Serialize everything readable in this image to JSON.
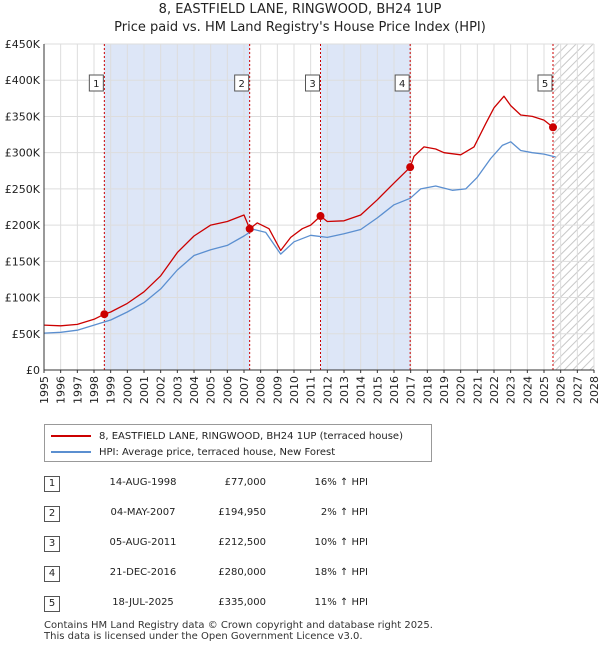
{
  "title": "8, EASTFIELD LANE, RINGWOOD, BH24 1UP",
  "subtitle": "Price paid vs. HM Land Registry's House Price Index (HPI)",
  "colors": {
    "red": "#cc0000",
    "blue": "#5b8fd0",
    "shade": "#dde6f7"
  },
  "chart_data": {
    "type": "line",
    "title": "8, EASTFIELD LANE, RINGWOOD, BH24 1UP",
    "subtitle": "Price paid vs. HM Land Registry's House Price Index (HPI)",
    "xlim": [
      1995,
      2028
    ],
    "ylim": [
      0,
      450000
    ],
    "x_ticks": [
      "1995",
      "1996",
      "1997",
      "1998",
      "1999",
      "2000",
      "2001",
      "2002",
      "2003",
      "2004",
      "2005",
      "2006",
      "2007",
      "2008",
      "2009",
      "2010",
      "2011",
      "2012",
      "2013",
      "2014",
      "2015",
      "2016",
      "2017",
      "2018",
      "2019",
      "2020",
      "2021",
      "2022",
      "2023",
      "2024",
      "2025",
      "2026",
      "2027",
      "2028"
    ],
    "y_ticks": [
      {
        "value": 0,
        "label": "£0"
      },
      {
        "value": 50000,
        "label": "£50K"
      },
      {
        "value": 100000,
        "label": "£100K"
      },
      {
        "value": 150000,
        "label": "£150K"
      },
      {
        "value": 200000,
        "label": "£200K"
      },
      {
        "value": 250000,
        "label": "£250K"
      },
      {
        "value": 300000,
        "label": "£300K"
      },
      {
        "value": 350000,
        "label": "£350K"
      },
      {
        "value": 400000,
        "label": "£400K"
      },
      {
        "value": 450000,
        "label": "£450K"
      }
    ],
    "shaded_ranges": [
      [
        1998.62,
        2007.34
      ],
      [
        2011.59,
        2016.97
      ]
    ],
    "hatched_from": 2025.54,
    "series": [
      {
        "name": "8, EASTFIELD LANE, RINGWOOD, BH24 1UP (terraced house)",
        "color": "#cc0000",
        "points": [
          [
            1995,
            62000
          ],
          [
            1996,
            61000
          ],
          [
            1997,
            63000
          ],
          [
            1998,
            70000
          ],
          [
            1998.62,
            77000
          ],
          [
            1999,
            80000
          ],
          [
            2000,
            92000
          ],
          [
            2001,
            108000
          ],
          [
            2002,
            130000
          ],
          [
            2003,
            162000
          ],
          [
            2004,
            185000
          ],
          [
            2005,
            200000
          ],
          [
            2006,
            205000
          ],
          [
            2007,
            214000
          ],
          [
            2007.34,
            194950
          ],
          [
            2007.8,
            203000
          ],
          [
            2008.5,
            195000
          ],
          [
            2009.2,
            165000
          ],
          [
            2009.8,
            183000
          ],
          [
            2010.5,
            195000
          ],
          [
            2011,
            200000
          ],
          [
            2011.59,
            212500
          ],
          [
            2012,
            205000
          ],
          [
            2013,
            206000
          ],
          [
            2014,
            214000
          ],
          [
            2015,
            235000
          ],
          [
            2016,
            258000
          ],
          [
            2016.97,
            280000
          ],
          [
            2017.2,
            295000
          ],
          [
            2017.8,
            308000
          ],
          [
            2018.5,
            305000
          ],
          [
            2019,
            300000
          ],
          [
            2020,
            297000
          ],
          [
            2020.8,
            308000
          ],
          [
            2021.5,
            340000
          ],
          [
            2022,
            362000
          ],
          [
            2022.6,
            378000
          ],
          [
            2023,
            365000
          ],
          [
            2023.6,
            352000
          ],
          [
            2024.3,
            350000
          ],
          [
            2025,
            345000
          ],
          [
            2025.54,
            335000
          ]
        ]
      },
      {
        "name": "HPI: Average price, terraced house, New Forest",
        "color": "#5b8fd0",
        "points": [
          [
            1995,
            51000
          ],
          [
            1996,
            52000
          ],
          [
            1997,
            55000
          ],
          [
            1998,
            62000
          ],
          [
            1999,
            69000
          ],
          [
            2000,
            80000
          ],
          [
            2001,
            93000
          ],
          [
            2002,
            112000
          ],
          [
            2003,
            138000
          ],
          [
            2004,
            158000
          ],
          [
            2005,
            166000
          ],
          [
            2006,
            172000
          ],
          [
            2007,
            185000
          ],
          [
            2007.6,
            194000
          ],
          [
            2008.3,
            190000
          ],
          [
            2009.2,
            160000
          ],
          [
            2010,
            177000
          ],
          [
            2011,
            186000
          ],
          [
            2012,
            183000
          ],
          [
            2013,
            188000
          ],
          [
            2014,
            194000
          ],
          [
            2015,
            210000
          ],
          [
            2016,
            228000
          ],
          [
            2016.97,
            237000
          ],
          [
            2017.6,
            250000
          ],
          [
            2018.5,
            254000
          ],
          [
            2019.5,
            248000
          ],
          [
            2020.3,
            250000
          ],
          [
            2021,
            266000
          ],
          [
            2021.8,
            292000
          ],
          [
            2022.5,
            310000
          ],
          [
            2023,
            315000
          ],
          [
            2023.6,
            303000
          ],
          [
            2024.3,
            300000
          ],
          [
            2025,
            298000
          ],
          [
            2025.7,
            294000
          ]
        ]
      }
    ],
    "sales": [
      {
        "id": "1",
        "x": 1998.62,
        "price": 77000
      },
      {
        "id": "2",
        "x": 2007.34,
        "price": 194950
      },
      {
        "id": "3",
        "x": 2011.59,
        "price": 212500
      },
      {
        "id": "4",
        "x": 2016.97,
        "price": 280000
      },
      {
        "id": "5",
        "x": 2025.54,
        "price": 335000
      }
    ]
  },
  "legend": {
    "red": "8, EASTFIELD LANE, RINGWOOD, BH24 1UP (terraced house)",
    "blue": "HPI: Average price, terraced house, New Forest"
  },
  "table": [
    {
      "num": "1",
      "date": "14-AUG-1998",
      "price": "£77,000",
      "hpi": "16% ↑ HPI"
    },
    {
      "num": "2",
      "date": "04-MAY-2007",
      "price": "£194,950",
      "hpi": "2% ↑ HPI"
    },
    {
      "num": "3",
      "date": "05-AUG-2011",
      "price": "£212,500",
      "hpi": "10% ↑ HPI"
    },
    {
      "num": "4",
      "date": "21-DEC-2016",
      "price": "£280,000",
      "hpi": "18% ↑ HPI"
    },
    {
      "num": "5",
      "date": "18-JUL-2025",
      "price": "£335,000",
      "hpi": "11% ↑ HPI"
    }
  ],
  "footer": {
    "line1": "Contains HM Land Registry data © Crown copyright and database right 2025.",
    "line2": "This data is licensed under the Open Government Licence v3.0."
  }
}
